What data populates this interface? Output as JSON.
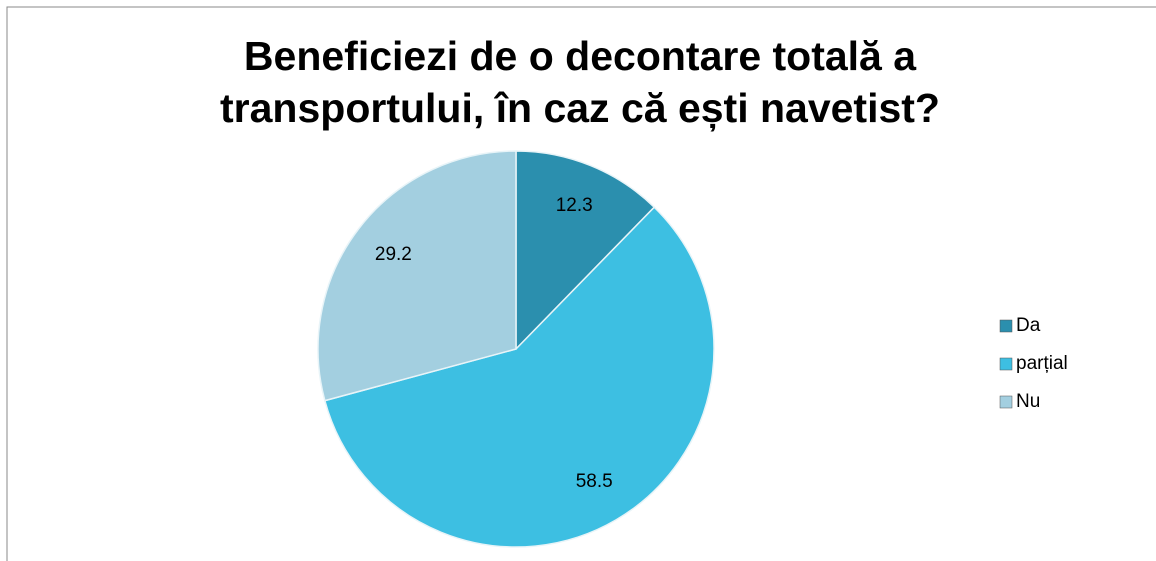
{
  "chart_data": {
    "type": "pie",
    "title": "Beneficiezi de o decontare totală a transportului, în caz că ești navetist?",
    "categories": [
      "Da",
      "parțial",
      "Nu"
    ],
    "values": [
      12.3,
      58.5,
      29.2
    ],
    "colors": [
      "#2b8fae",
      "#3dbfe2",
      "#a3cfe0"
    ],
    "legend": "right"
  }
}
